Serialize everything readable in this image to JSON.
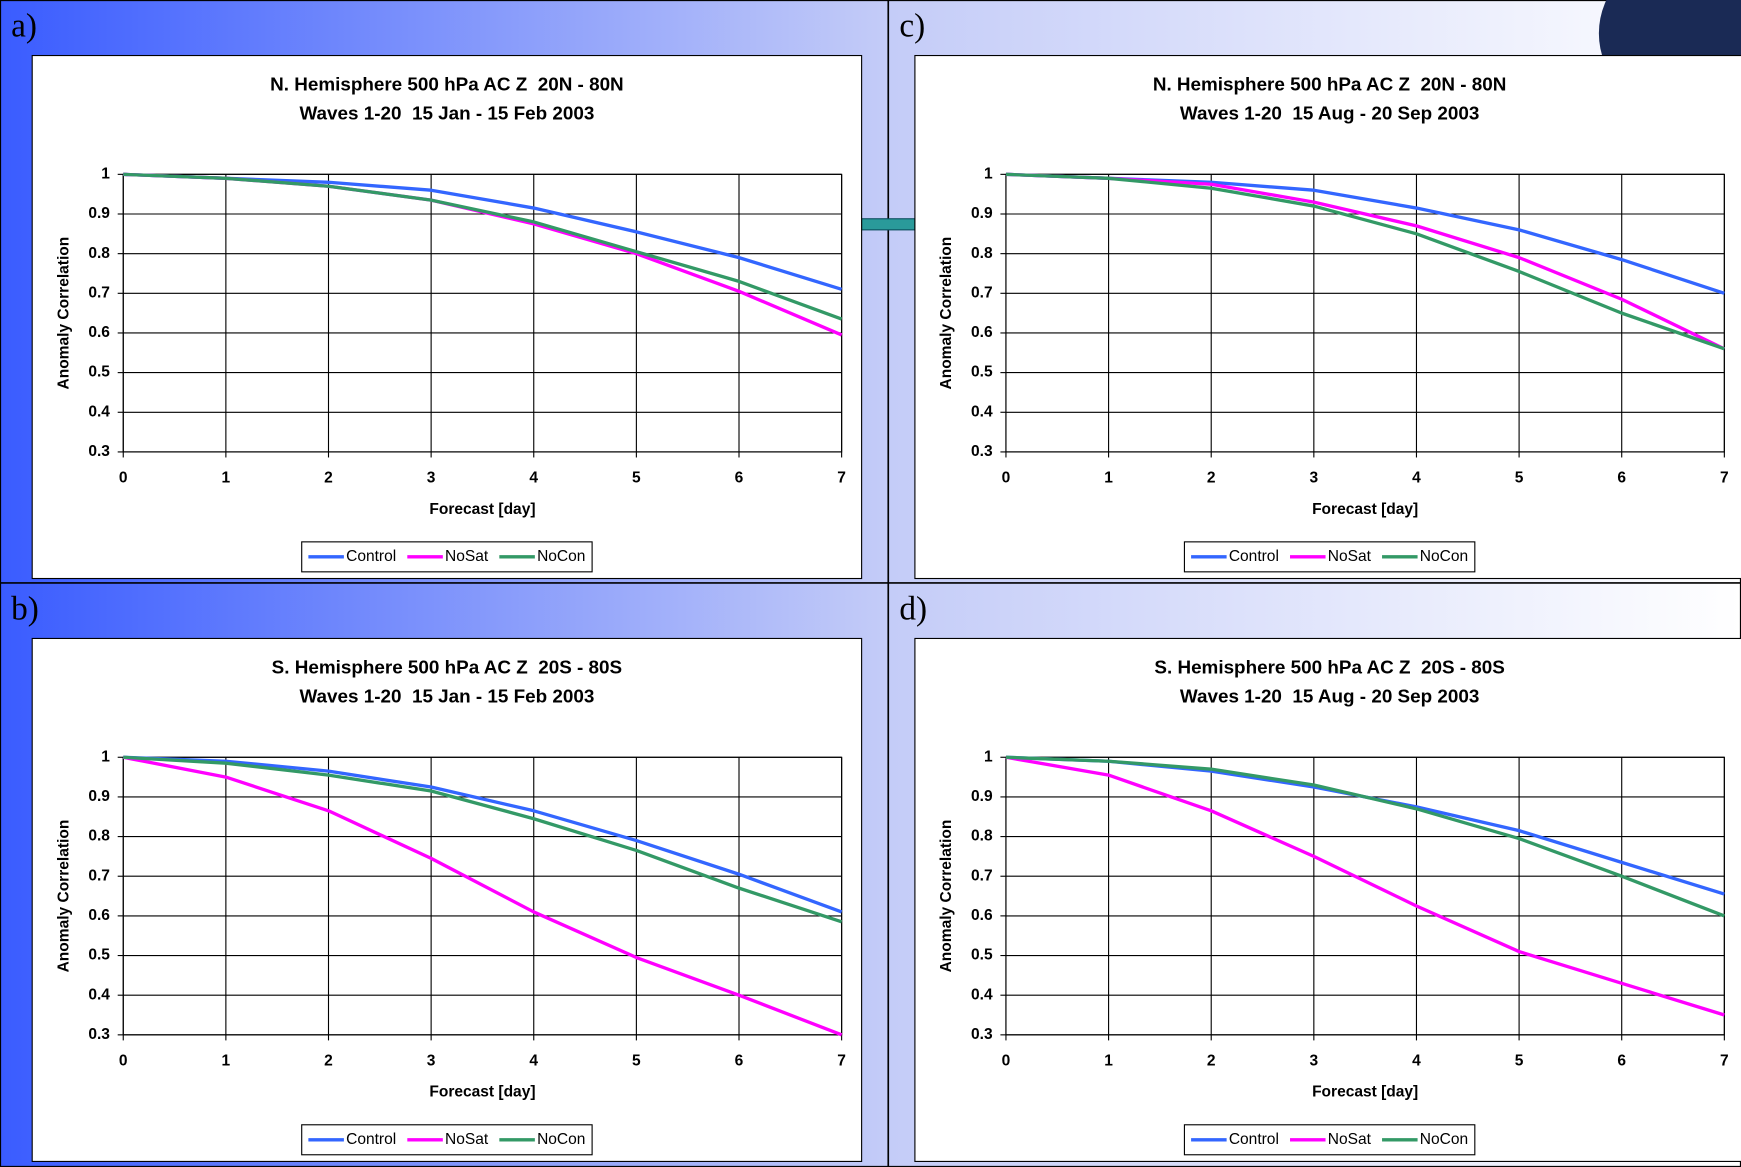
{
  "chart_data": [
    {
      "type": "line",
      "panel": "a)",
      "title": "N. Hemisphere 500 hPa AC Z  20N - 80N",
      "subtitle": "Waves 1-20  15 Jan - 15 Feb 2003",
      "x_label": "Forecast [day]",
      "y_label": "Anomaly Correlation",
      "x": [
        0,
        1,
        2,
        3,
        4,
        5,
        6,
        7
      ],
      "xlim": [
        0,
        7
      ],
      "xticks": [
        0,
        1,
        2,
        3,
        4,
        5,
        6,
        7
      ],
      "ylim": [
        0.3,
        1
      ],
      "yticks": [
        0.3,
        0.4,
        0.5,
        0.6,
        0.7,
        0.8,
        0.9,
        1
      ],
      "grid": true,
      "series": [
        {
          "name": "Control",
          "color": "#3366ff",
          "values": [
            1,
            0.99,
            0.98,
            0.96,
            0.915,
            0.855,
            0.79,
            0.71
          ]
        },
        {
          "name": "NoSat",
          "color": "#ff00ff",
          "values": [
            1,
            0.99,
            0.97,
            0.935,
            0.875,
            0.8,
            0.705,
            0.595
          ]
        },
        {
          "name": "NoCon",
          "color": "#339966",
          "values": [
            1,
            0.99,
            0.97,
            0.935,
            0.88,
            0.805,
            0.73,
            0.635
          ]
        }
      ]
    },
    {
      "type": "line",
      "panel": "c)",
      "title": "N. Hemisphere 500 hPa AC Z  20N - 80N",
      "subtitle": "Waves 1-20  15 Aug - 20 Sep 2003",
      "x_label": "Forecast [day]",
      "y_label": "Anomaly Correlation",
      "x": [
        0,
        1,
        2,
        3,
        4,
        5,
        6,
        7
      ],
      "xlim": [
        0,
        7
      ],
      "xticks": [
        0,
        1,
        2,
        3,
        4,
        5,
        6,
        7
      ],
      "ylim": [
        0.3,
        1
      ],
      "yticks": [
        0.3,
        0.4,
        0.5,
        0.6,
        0.7,
        0.8,
        0.9,
        1
      ],
      "grid": true,
      "series": [
        {
          "name": "Control",
          "color": "#3366ff",
          "values": [
            1,
            0.99,
            0.98,
            0.96,
            0.915,
            0.86,
            0.785,
            0.7
          ]
        },
        {
          "name": "NoSat",
          "color": "#ff00ff",
          "values": [
            1,
            0.99,
            0.975,
            0.93,
            0.87,
            0.79,
            0.685,
            0.56
          ]
        },
        {
          "name": "NoCon",
          "color": "#339966",
          "values": [
            1,
            0.99,
            0.965,
            0.92,
            0.85,
            0.755,
            0.65,
            0.56
          ]
        }
      ]
    },
    {
      "type": "line",
      "panel": "b)",
      "title": "S. Hemisphere 500 hPa AC Z  20S - 80S",
      "subtitle": "Waves 1-20  15 Jan - 15 Feb 2003",
      "x_label": "Forecast [day]",
      "y_label": "Anomaly Correlation",
      "x": [
        0,
        1,
        2,
        3,
        4,
        5,
        6,
        7
      ],
      "xlim": [
        0,
        7
      ],
      "xticks": [
        0,
        1,
        2,
        3,
        4,
        5,
        6,
        7
      ],
      "ylim": [
        0.3,
        1
      ],
      "yticks": [
        0.3,
        0.4,
        0.5,
        0.6,
        0.7,
        0.8,
        0.9,
        1
      ],
      "grid": true,
      "series": [
        {
          "name": "Control",
          "color": "#3366ff",
          "values": [
            1,
            0.99,
            0.965,
            0.925,
            0.865,
            0.79,
            0.705,
            0.61
          ]
        },
        {
          "name": "NoSat",
          "color": "#ff00ff",
          "values": [
            1,
            0.95,
            0.865,
            0.745,
            0.61,
            0.495,
            0.4,
            0.3
          ]
        },
        {
          "name": "NoCon",
          "color": "#339966",
          "values": [
            1,
            0.985,
            0.955,
            0.915,
            0.845,
            0.765,
            0.67,
            0.585
          ]
        }
      ]
    },
    {
      "type": "line",
      "panel": "d)",
      "title": "S. Hemisphere 500 hPa AC Z  20S - 80S",
      "subtitle": "Waves 1-20  15 Aug - 20 Sep 2003",
      "x_label": "Forecast [day]",
      "y_label": "Anomaly Correlation",
      "x": [
        0,
        1,
        2,
        3,
        4,
        5,
        6,
        7
      ],
      "xlim": [
        0,
        7
      ],
      "xticks": [
        0,
        1,
        2,
        3,
        4,
        5,
        6,
        7
      ],
      "ylim": [
        0.3,
        1
      ],
      "yticks": [
        0.3,
        0.4,
        0.5,
        0.6,
        0.7,
        0.8,
        0.9,
        1
      ],
      "grid": true,
      "series": [
        {
          "name": "Control",
          "color": "#3366ff",
          "values": [
            1,
            0.99,
            0.965,
            0.925,
            0.875,
            0.815,
            0.735,
            0.655
          ]
        },
        {
          "name": "NoSat",
          "color": "#ff00ff",
          "values": [
            1,
            0.955,
            0.865,
            0.75,
            0.625,
            0.51,
            0.43,
            0.35
          ]
        },
        {
          "name": "NoCon",
          "color": "#339966",
          "values": [
            1,
            0.99,
            0.97,
            0.93,
            0.87,
            0.795,
            0.7,
            0.6
          ]
        }
      ]
    }
  ]
}
